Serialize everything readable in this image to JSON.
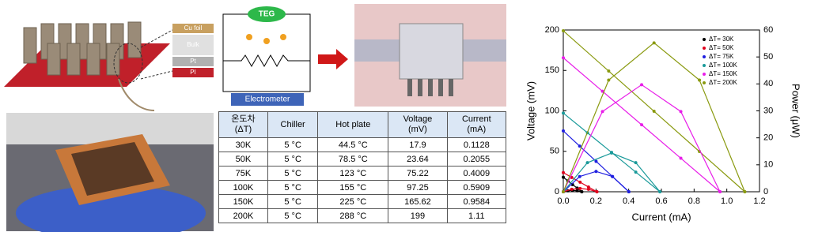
{
  "figure_labels": {
    "layers": [
      "Cu foil",
      "Bulk",
      "Pt",
      "PI"
    ],
    "teg": "TEG",
    "meter": "Electrometer"
  },
  "table": {
    "header": [
      [
        "온도차",
        "(ΔT)"
      ],
      [
        "Chiller"
      ],
      [
        "Hot plate"
      ],
      [
        "Voltage",
        "(mV)"
      ],
      [
        "Current",
        "(mA)"
      ]
    ],
    "rows": [
      [
        "30K",
        "5 °C",
        "44.5 °C",
        "17.9",
        "0.1128"
      ],
      [
        "50K",
        "5 °C",
        "78.5 °C",
        "23.64",
        "0.2055"
      ],
      [
        "75K",
        "5 °C",
        "123 °C",
        "75.22",
        "0.4009"
      ],
      [
        "100K",
        "5 °C",
        "155 °C",
        "97.25",
        "0.5909"
      ],
      [
        "150K",
        "5 °C",
        "225 °C",
        "165.62",
        "0.9584"
      ],
      [
        "200K",
        "5 °C",
        "288 °C",
        "199",
        "1.11"
      ]
    ]
  },
  "chart_data": {
    "type": "line",
    "x_label": "Current (mA)",
    "y_label": "Voltage (mV)",
    "y2_label": "Power (μW)",
    "xlim": [
      0,
      1.2
    ],
    "xticks": [
      {
        "value": 0,
        "label": "0.0"
      },
      0.2,
      0.4,
      0.6,
      0.8,
      {
        "value": 1,
        "label": "1.0"
      },
      1.2
    ],
    "ylim": [
      0,
      200
    ],
    "yticks": [
      0,
      50,
      100,
      150,
      200
    ],
    "y2lim": [
      0,
      60
    ],
    "y2ticks": [
      0,
      10,
      20,
      30,
      40,
      50,
      60
    ],
    "legend": "upper right",
    "series": [
      {
        "name": "ΔT= 30K",
        "color": "#000000",
        "x": [
          0,
          0.0282,
          0.0564,
          0.0846,
          0.1128
        ],
        "values": [
          17.9,
          13.4,
          8.95,
          4.48,
          0
        ]
      },
      {
        "name": "ΔT= 50K",
        "color": "#e0001b",
        "x": [
          0,
          0.0514,
          0.1028,
          0.1541,
          0.2055
        ],
        "values": [
          23.64,
          17.73,
          11.82,
          5.91,
          0
        ]
      },
      {
        "name": "ΔT= 75K",
        "color": "#1f1fe0",
        "x": [
          0,
          0.1002,
          0.2005,
          0.3007,
          0.4009
        ],
        "values": [
          75.22,
          56.42,
          37.61,
          18.81,
          0
        ]
      },
      {
        "name": "ΔT= 100K",
        "color": "#1a9a9a",
        "x": [
          0,
          0.1477,
          0.2955,
          0.4432,
          0.5909
        ],
        "values": [
          97.25,
          72.94,
          48.63,
          24.31,
          0
        ]
      },
      {
        "name": "ΔT= 150K",
        "color": "#e81ee8",
        "x": [
          0,
          0.2396,
          0.4792,
          0.7188,
          0.9584
        ],
        "values": [
          165.62,
          124.22,
          82.81,
          41.41,
          0
        ]
      },
      {
        "name": "ΔT= 200K",
        "color": "#8a9a10",
        "x": [
          0,
          0.2775,
          0.555,
          0.8325,
          1.11
        ],
        "values": [
          199,
          149.25,
          99.5,
          49.75,
          0
        ]
      },
      {
        "axis": "y2",
        "color": "#000000",
        "x": [
          0,
          0.0282,
          0.0564,
          0.0846,
          0.1128
        ],
        "values": [
          0,
          0.38,
          0.5,
          0.38,
          0
        ]
      },
      {
        "axis": "y2",
        "color": "#e0001b",
        "x": [
          0,
          0.0514,
          0.1028,
          0.1541,
          0.2055
        ],
        "values": [
          0,
          0.91,
          1.21,
          0.91,
          0
        ]
      },
      {
        "axis": "y2",
        "color": "#1f1fe0",
        "x": [
          0,
          0.1002,
          0.2005,
          0.3007,
          0.4009
        ],
        "values": [
          0,
          5.65,
          7.54,
          5.65,
          0
        ]
      },
      {
        "axis": "y2",
        "color": "#1a9a9a",
        "x": [
          0,
          0.1477,
          0.2955,
          0.4432,
          0.5909
        ],
        "values": [
          0,
          10.78,
          14.37,
          10.78,
          0
        ]
      },
      {
        "axis": "y2",
        "color": "#e81ee8",
        "x": [
          0,
          0.2396,
          0.4792,
          0.7188,
          0.9584
        ],
        "values": [
          0,
          29.76,
          39.68,
          29.76,
          0
        ]
      },
      {
        "axis": "y2",
        "color": "#8a9a10",
        "x": [
          0,
          0.2775,
          0.555,
          0.8325,
          1.11
        ],
        "values": [
          0,
          41.42,
          55.22,
          41.42,
          0
        ]
      }
    ]
  }
}
